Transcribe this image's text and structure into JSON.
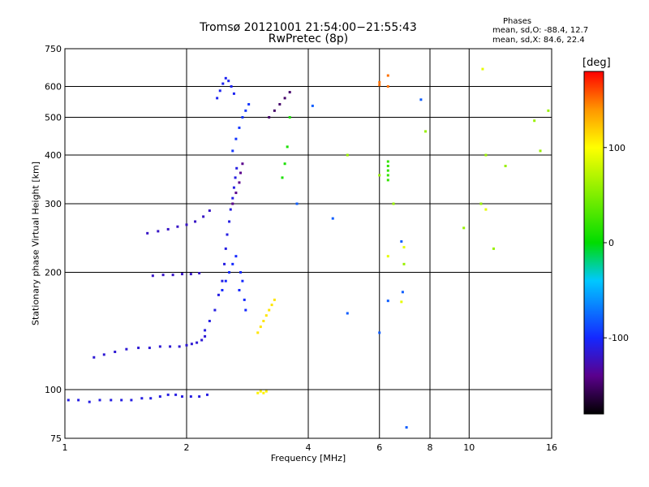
{
  "chart_data": {
    "type": "scatter",
    "title": "Tromsø 20121001 21:54:00−21:55:43",
    "subtitle": "RwPretec (8p)",
    "xlabel": "Frequency [MHz]",
    "ylabel": "Stationary phase Virtual Height [km]",
    "x_scale": "log",
    "y_scale": "log",
    "xlim": [
      1,
      16
    ],
    "ylim": [
      75,
      750
    ],
    "x_ticks": [
      1,
      2,
      4,
      6,
      8,
      10,
      16
    ],
    "x_tick_labels": [
      "1",
      "2",
      "4",
      "6",
      "8",
      "10",
      "16"
    ],
    "y_ticks": [
      75,
      100,
      200,
      300,
      400,
      500,
      600,
      750
    ],
    "y_tick_labels": [
      "75",
      "100",
      "200",
      "300",
      "400",
      "500",
      "600",
      "750"
    ],
    "grid": true,
    "colorbar": {
      "label": "[deg]",
      "range": [
        -180,
        180
      ],
      "ticks": [
        100,
        0,
        -100
      ],
      "tick_labels": [
        "100",
        "0",
        "-100"
      ]
    },
    "phase_stats": {
      "header": "Phases",
      "o_line": "mean, sd,O:  -88.4, 12.7",
      "x_line": "mean, sd,X:  84.6, 22.4"
    },
    "series": [
      {
        "x": [
          1.02,
          1.08,
          1.15,
          1.22,
          1.3,
          1.38,
          1.46,
          1.55,
          1.63,
          1.72,
          1.8,
          1.88,
          1.95,
          2.05,
          2.15,
          2.25
        ],
        "y": [
          94,
          94,
          93,
          94,
          94,
          94,
          94,
          95,
          95,
          96,
          97,
          97,
          96,
          96,
          96,
          97
        ],
        "phase": -110
      },
      {
        "x": [
          1.18,
          1.25,
          1.33,
          1.42,
          1.52,
          1.62,
          1.72,
          1.82,
          1.92,
          2.0,
          2.06,
          2.12,
          2.18,
          2.22
        ],
        "y": [
          121,
          123,
          125,
          127,
          128,
          128,
          129,
          129,
          129,
          130,
          131,
          132,
          134,
          137
        ],
        "phase": -115
      },
      {
        "x": [
          2.22,
          2.28,
          2.35,
          2.4,
          2.45,
          2.48,
          2.5,
          2.52,
          2.55,
          2.57,
          2.6,
          2.62,
          2.64,
          2.66
        ],
        "y": [
          142,
          150,
          160,
          175,
          190,
          210,
          230,
          250,
          270,
          290,
          310,
          330,
          350,
          370
        ],
        "phase": -110
      },
      {
        "x": [
          2.45,
          2.5,
          2.55,
          2.6,
          2.65,
          2.7,
          2.72,
          2.75,
          2.78,
          2.8
        ],
        "y": [
          180,
          190,
          200,
          210,
          220,
          180,
          200,
          190,
          170,
          160
        ],
        "phase": -100
      },
      {
        "x": [
          1.6,
          1.7,
          1.8,
          1.9,
          2.0,
          2.1,
          2.2,
          2.28
        ],
        "y": [
          252,
          255,
          258,
          262,
          265,
          270,
          278,
          288
        ],
        "phase": -120
      },
      {
        "x": [
          1.65,
          1.75,
          1.85,
          1.95,
          2.05,
          2.15
        ],
        "y": [
          196,
          197,
          197,
          198,
          198,
          199
        ],
        "phase": -120
      },
      {
        "x": [
          2.38,
          2.42,
          2.46,
          2.5,
          2.54,
          2.58,
          2.62
        ],
        "y": [
          560,
          585,
          610,
          630,
          620,
          600,
          575
        ],
        "phase": -105
      },
      {
        "x": [
          2.6,
          2.65,
          2.7,
          2.75,
          2.8,
          2.85
        ],
        "y": [
          410,
          440,
          470,
          500,
          520,
          540
        ],
        "phase": -95
      },
      {
        "x": [
          2.6,
          2.65,
          2.7,
          2.72,
          2.75
        ],
        "y": [
          300,
          320,
          340,
          360,
          380
        ],
        "phase": -140
      },
      {
        "x": [
          3.0,
          3.05,
          3.1,
          3.15,
          3.2,
          3.25,
          3.3
        ],
        "y": [
          140,
          145,
          150,
          155,
          160,
          165,
          170
        ],
        "phase": 110
      },
      {
        "x": [
          3.0,
          3.05,
          3.1,
          3.15
        ],
        "y": [
          98,
          99,
          98,
          99
        ],
        "phase": 105
      },
      {
        "x": [
          3.2,
          3.3,
          3.4,
          3.5,
          3.6
        ],
        "y": [
          500,
          520,
          540,
          560,
          580
        ],
        "phase": -150
      },
      {
        "x": [
          3.45,
          3.5,
          3.55,
          3.6
        ],
        "y": [
          350,
          380,
          420,
          500
        ],
        "phase": 10
      },
      {
        "x": [
          6.3,
          6.3,
          6.3,
          6.3,
          6.3
        ],
        "y": [
          345,
          355,
          365,
          375,
          385
        ],
        "phase": 20
      },
      {
        "x": [
          6.0,
          6.0,
          6.3,
          6.3
        ],
        "y": [
          605,
          615,
          600,
          640
        ],
        "phase": 150
      },
      {
        "x": [
          5.0,
          6.0,
          6.5,
          6.9,
          7.8,
          9.7,
          10.7,
          11.0,
          11.5,
          12.3,
          14.5,
          15.0,
          15.7
        ],
        "y": [
          400,
          355,
          300,
          210,
          460,
          260,
          300,
          400,
          230,
          375,
          490,
          410,
          520
        ],
        "phase": 60
      },
      {
        "x": [
          3.75,
          4.1,
          4.6,
          5.0,
          6.0,
          6.3,
          6.8,
          6.85,
          7.0,
          7.6
        ],
        "y": [
          300,
          535,
          275,
          157,
          140,
          169,
          240,
          178,
          80,
          555
        ],
        "phase": -80
      },
      {
        "x": [
          10.8,
          11.0,
          6.3,
          6.9,
          6.8
        ],
        "y": [
          665,
          290,
          220,
          232,
          168
        ],
        "phase": 90
      }
    ]
  }
}
